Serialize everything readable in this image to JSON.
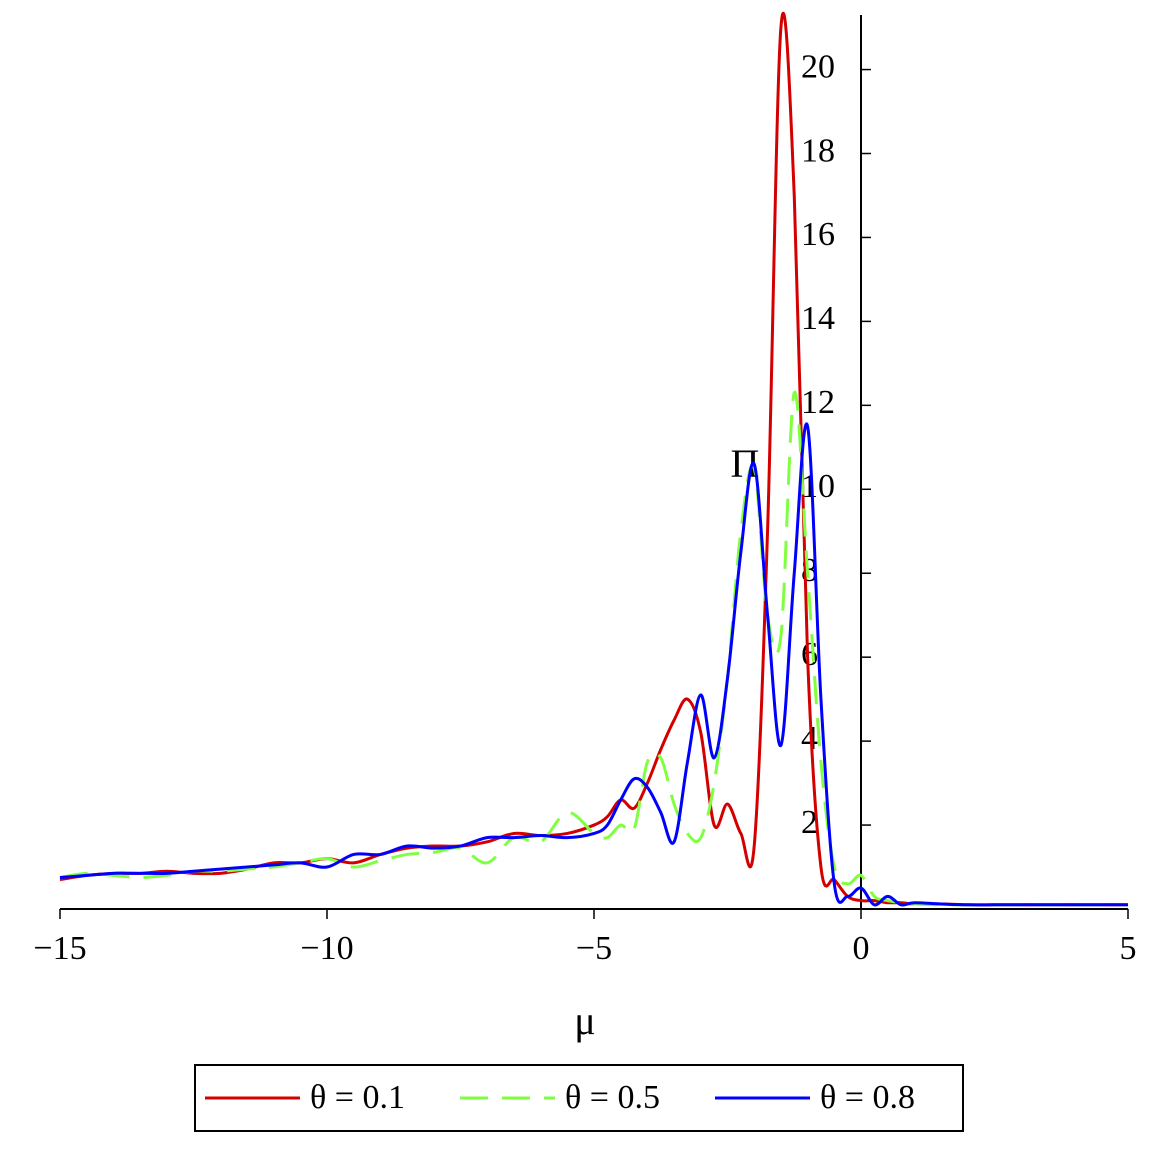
{
  "chart_data": {
    "type": "line",
    "x_label": "μ",
    "y_label": "Π",
    "x": [
      -15,
      -14.5,
      -14,
      -13.5,
      -13,
      -12.5,
      -12,
      -11.5,
      -11,
      -10.5,
      -10,
      -9.5,
      -9,
      -8.5,
      -8,
      -7.5,
      -7,
      -6.5,
      -6,
      -5.5,
      -5,
      -4.75,
      -4.5,
      -4.25,
      -4,
      -3.75,
      -3.5,
      -3.25,
      -3,
      -2.75,
      -2.5,
      -2.25,
      -2,
      -1.75,
      -1.5,
      -1.25,
      -1,
      -0.75,
      -0.5,
      -0.25,
      0,
      0.25,
      0.5,
      0.75,
      1,
      1.5,
      2,
      2.5,
      3,
      3.5,
      4,
      4.5,
      5
    ],
    "series": [
      {
        "name": "θ = 0.1",
        "color": "#d40000",
        "dash": false,
        "values": [
          0.7,
          0.8,
          0.85,
          0.85,
          0.9,
          0.85,
          0.85,
          0.95,
          1.1,
          1.1,
          1.2,
          1.1,
          1.3,
          1.45,
          1.5,
          1.5,
          1.6,
          1.8,
          1.75,
          1.8,
          2.0,
          2.2,
          2.6,
          2.4,
          3.0,
          3.8,
          4.5,
          5.0,
          4.2,
          2.0,
          2.5,
          1.8,
          1.5,
          9,
          21,
          17,
          6,
          1.0,
          0.7,
          0.3,
          0.2,
          0.2,
          0.15,
          0.15,
          0.12,
          0.12,
          0.1,
          0.1,
          0.1,
          0.1,
          0.1,
          0.1,
          0.1
        ]
      },
      {
        "name": "θ = 0.5",
        "color": "#80ff40",
        "dash": true,
        "values": [
          0.75,
          0.85,
          0.8,
          0.75,
          0.8,
          0.9,
          0.9,
          0.95,
          1.0,
          1.1,
          1.2,
          1.0,
          1.15,
          1.3,
          1.35,
          1.45,
          1.1,
          1.7,
          1.6,
          2.3,
          1.8,
          1.7,
          2.0,
          1.9,
          3.5,
          3.6,
          2.5,
          1.8,
          1.7,
          3.0,
          5.5,
          9,
          10.5,
          7,
          6.5,
          12.3,
          8,
          3.5,
          1.0,
          0.6,
          0.8,
          0.3,
          0.2,
          0.15,
          0.12,
          0.1,
          0.1,
          0.1,
          0.1,
          0.1,
          0.1,
          0.1,
          0.1
        ]
      },
      {
        "name": "θ = 0.8",
        "color": "#0000ff",
        "dash": false,
        "values": [
          0.75,
          0.8,
          0.85,
          0.85,
          0.85,
          0.9,
          0.95,
          1.0,
          1.05,
          1.1,
          1.0,
          1.3,
          1.3,
          1.5,
          1.45,
          1.5,
          1.7,
          1.7,
          1.75,
          1.7,
          1.8,
          2.0,
          2.6,
          3.1,
          2.9,
          2.3,
          1.6,
          3.5,
          5.1,
          3.6,
          5.5,
          8.5,
          10.6,
          7,
          3.9,
          8,
          11.5,
          5,
          0.6,
          0.3,
          0.5,
          0.1,
          0.3,
          0.1,
          0.15,
          0.12,
          0.1,
          0.1,
          0.1,
          0.1,
          0.1,
          0.1,
          0.1
        ]
      }
    ],
    "xlim": [
      -15,
      5
    ],
    "xticks": [
      {
        "value": -15,
        "label": "−15"
      },
      {
        "value": -10,
        "label": "−10"
      },
      {
        "value": -5,
        "label": "−5"
      },
      0,
      5
    ],
    "ylim": [
      0,
      21.3
    ],
    "yticks": [
      2,
      4,
      6,
      8,
      10,
      12,
      14,
      16,
      18,
      20
    ],
    "grid": false
  }
}
